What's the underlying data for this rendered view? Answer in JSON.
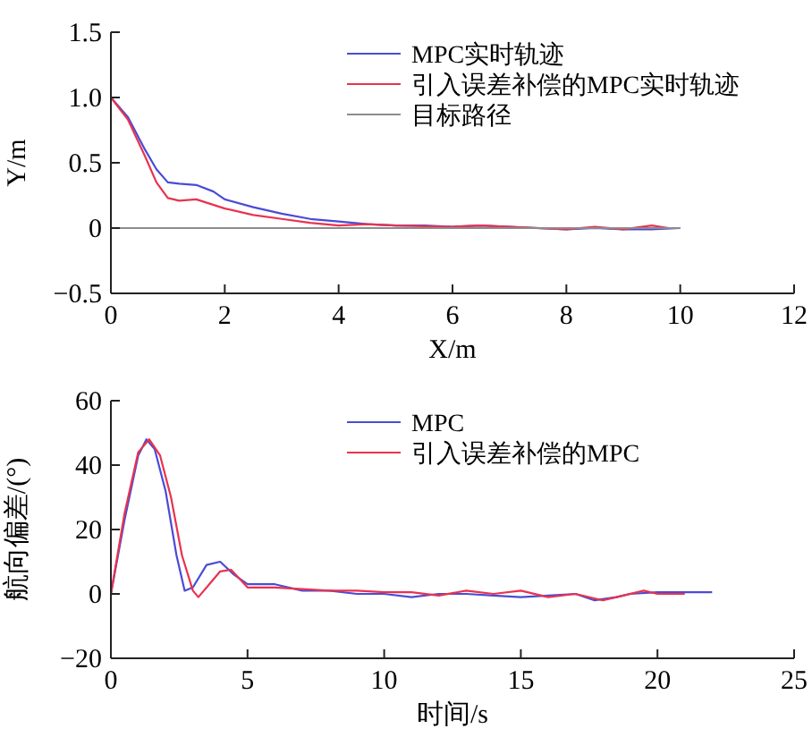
{
  "chart_data": [
    {
      "type": "line",
      "xlabel": "X/m",
      "ylabel": "Y/m",
      "xlim": [
        0,
        12
      ],
      "ylim": [
        -0.5,
        1.5
      ],
      "xticks": [
        0,
        2,
        4,
        6,
        8,
        10,
        12
      ],
      "yticks": [
        -0.5,
        0,
        0.5,
        {
          "value": 1,
          "label": "1.0"
        },
        1.5
      ],
      "legend": "top right",
      "grid": false,
      "series": [
        {
          "name": "MPC实时轨迹",
          "color": "#4b4bd6",
          "x": [
            0,
            0.3,
            0.6,
            0.8,
            1,
            1.2,
            1.5,
            1.8,
            2,
            2.5,
            3,
            3.5,
            4,
            4.5,
            5,
            5.5,
            6,
            6.5,
            7,
            7.5,
            8,
            8.5,
            9,
            9.5,
            10
          ],
          "values": [
            1,
            0.85,
            0.6,
            0.45,
            0.35,
            0.34,
            0.33,
            0.28,
            0.22,
            0.16,
            0.11,
            0.07,
            0.05,
            0.03,
            0.02,
            0.02,
            0.01,
            0.02,
            0.01,
            0,
            -0.01,
            0,
            -0.01,
            -0.01,
            0
          ]
        },
        {
          "name": "引入误差补偿的MPC实时轨迹",
          "color": "#e8334f",
          "x": [
            0,
            0.3,
            0.6,
            0.8,
            1,
            1.2,
            1.5,
            2,
            2.5,
            3,
            3.5,
            4,
            4.5,
            5,
            6,
            6.5,
            7,
            8,
            8.5,
            9,
            9.5,
            9.8
          ],
          "values": [
            1,
            0.83,
            0.55,
            0.35,
            0.23,
            0.21,
            0.22,
            0.15,
            0.1,
            0.07,
            0.04,
            0.02,
            0.03,
            0.02,
            0.01,
            0.02,
            0.01,
            -0.01,
            0.01,
            -0.01,
            0.02,
            0
          ]
        },
        {
          "name": "目标路径",
          "color": "#8c8c8c",
          "x": [
            0,
            10
          ],
          "values": [
            0,
            0
          ]
        }
      ]
    },
    {
      "type": "line",
      "xlabel": "时间/s",
      "ylabel": "航向偏差/(°)",
      "xlim": [
        0,
        25
      ],
      "ylim": [
        -20,
        60
      ],
      "xticks": [
        0,
        5,
        10,
        15,
        20,
        25
      ],
      "yticks": [
        -20,
        0,
        20,
        40,
        60
      ],
      "legend": "top right",
      "grid": false,
      "series": [
        {
          "name": "MPC",
          "color": "#4b4bd6",
          "x": [
            0,
            0.5,
            1,
            1.3,
            1.6,
            2,
            2.4,
            2.7,
            3,
            3.5,
            4,
            4.5,
            5,
            5.5,
            6,
            7,
            8,
            9,
            10,
            11,
            12,
            13,
            14,
            15,
            16,
            17,
            17.7,
            18.5,
            19,
            20,
            22
          ],
          "values": [
            0,
            23,
            43,
            48,
            45,
            32,
            12,
            1,
            2,
            9,
            10,
            6,
            3,
            3,
            3,
            1,
            1,
            0,
            0,
            -1,
            0,
            0,
            -0.5,
            -1,
            -0.5,
            0,
            -2,
            -1,
            0,
            0.5,
            0.5
          ]
        },
        {
          "name": "引入误差补偿的MPC",
          "color": "#e8334f",
          "x": [
            0,
            0.5,
            1,
            1.4,
            1.8,
            2.2,
            2.6,
            3,
            3.2,
            3.6,
            4,
            4.4,
            5,
            5.5,
            6,
            7,
            8,
            9,
            10,
            11,
            12,
            13,
            14,
            15,
            16,
            17,
            18,
            18.5,
            19.5,
            20,
            21
          ],
          "values": [
            0,
            25,
            44,
            48,
            43,
            30,
            12,
            1,
            -1,
            3,
            7,
            7.5,
            2,
            2,
            2,
            1.5,
            1,
            1,
            0.5,
            0.5,
            -0.5,
            1,
            0,
            1,
            -1,
            0,
            -2,
            -1,
            1,
            0,
            0
          ]
        }
      ]
    }
  ]
}
